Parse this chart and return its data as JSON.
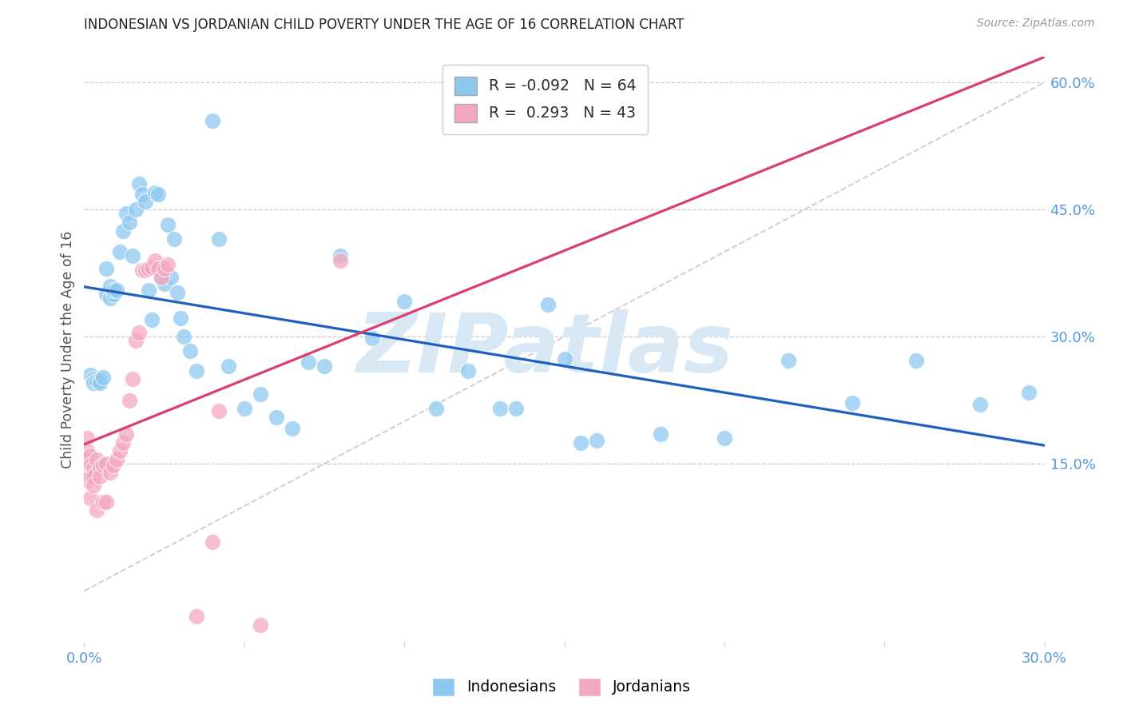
{
  "title": "INDONESIAN VS JORDANIAN CHILD POVERTY UNDER THE AGE OF 16 CORRELATION CHART",
  "source": "Source: ZipAtlas.com",
  "ylabel": "Child Poverty Under the Age of 16",
  "x_min": 0.0,
  "x_max": 0.3,
  "y_min": -0.06,
  "y_max": 0.63,
  "x_ticks": [
    0.0,
    0.05,
    0.1,
    0.15,
    0.2,
    0.25,
    0.3
  ],
  "x_tick_labels": [
    "0.0%",
    "",
    "",
    "",
    "",
    "",
    "30.0%"
  ],
  "y_ticks_right": [
    0.15,
    0.3,
    0.45,
    0.6
  ],
  "y_tick_labels_right": [
    "15.0%",
    "30.0%",
    "45.0%",
    "60.0%"
  ],
  "grid_color": "#cccccc",
  "background_color": "#ffffff",
  "indonesian_color": "#8EC8F0",
  "jordanian_color": "#F4A8C0",
  "trend_indonesian_color": "#1E5FBF",
  "trend_jordanian_color": "#D84070",
  "diagonal_color": "#D8C8D8",
  "legend_R_indonesian": "-0.092",
  "legend_N_indonesian": "64",
  "legend_R_jordanian": " 0.293",
  "legend_N_jordanian": "43",
  "watermark": "ZIPatlas",
  "watermark_color": "#D8E8F5",
  "indonesian_x": [
    0.002,
    0.003,
    0.003,
    0.004,
    0.005,
    0.005,
    0.006,
    0.007,
    0.007,
    0.008,
    0.008,
    0.009,
    0.009,
    0.01,
    0.011,
    0.012,
    0.013,
    0.014,
    0.015,
    0.016,
    0.017,
    0.018,
    0.019,
    0.02,
    0.021,
    0.022,
    0.023,
    0.024,
    0.025,
    0.026,
    0.027,
    0.028,
    0.029,
    0.03,
    0.031,
    0.033,
    0.035,
    0.04,
    0.042,
    0.045,
    0.05,
    0.055,
    0.06,
    0.065,
    0.08,
    0.09,
    0.1,
    0.11,
    0.13,
    0.15,
    0.16,
    0.18,
    0.2,
    0.22,
    0.24,
    0.26,
    0.28,
    0.295,
    0.145,
    0.12,
    0.07,
    0.075,
    0.135,
    0.155
  ],
  "indonesian_y": [
    0.255,
    0.25,
    0.245,
    0.248,
    0.248,
    0.245,
    0.252,
    0.38,
    0.35,
    0.36,
    0.345,
    0.35,
    0.355,
    0.355,
    0.4,
    0.425,
    0.445,
    0.435,
    0.395,
    0.45,
    0.48,
    0.468,
    0.46,
    0.355,
    0.32,
    0.47,
    0.468,
    0.37,
    0.362,
    0.432,
    0.37,
    0.415,
    0.352,
    0.322,
    0.3,
    0.283,
    0.26,
    0.555,
    0.415,
    0.265,
    0.215,
    0.232,
    0.205,
    0.192,
    0.395,
    0.298,
    0.342,
    0.215,
    0.215,
    0.274,
    0.178,
    0.185,
    0.18,
    0.272,
    0.222,
    0.272,
    0.22,
    0.234,
    0.338,
    0.26,
    0.27,
    0.265,
    0.215,
    0.175
  ],
  "jordanian_x": [
    0.001,
    0.001,
    0.001,
    0.001,
    0.002,
    0.002,
    0.002,
    0.002,
    0.003,
    0.003,
    0.003,
    0.004,
    0.004,
    0.005,
    0.005,
    0.006,
    0.006,
    0.007,
    0.007,
    0.008,
    0.009,
    0.01,
    0.011,
    0.012,
    0.013,
    0.014,
    0.015,
    0.016,
    0.017,
    0.018,
    0.019,
    0.02,
    0.021,
    0.022,
    0.023,
    0.024,
    0.025,
    0.026,
    0.035,
    0.04,
    0.042,
    0.055,
    0.08
  ],
  "jordanian_y": [
    0.18,
    0.165,
    0.155,
    0.13,
    0.16,
    0.148,
    0.135,
    0.11,
    0.145,
    0.135,
    0.125,
    0.155,
    0.095,
    0.145,
    0.135,
    0.148,
    0.105,
    0.15,
    0.105,
    0.14,
    0.148,
    0.155,
    0.165,
    0.175,
    0.185,
    0.225,
    0.25,
    0.295,
    0.305,
    0.378,
    0.378,
    0.38,
    0.382,
    0.39,
    0.38,
    0.37,
    0.38,
    0.385,
    -0.03,
    0.058,
    0.212,
    -0.04,
    0.39
  ]
}
